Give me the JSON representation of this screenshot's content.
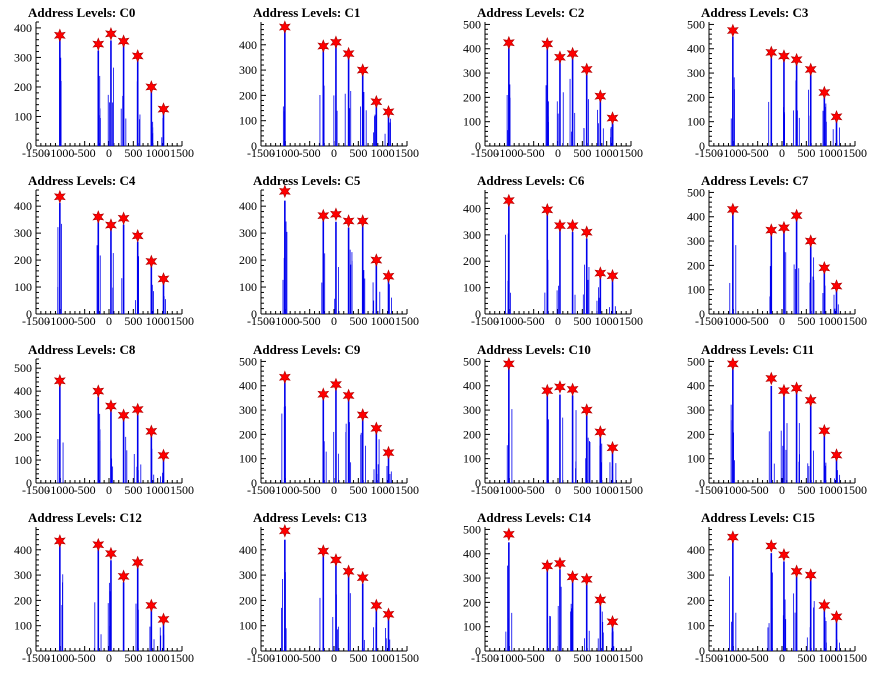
{
  "chart_data": [
    {
      "type": "bar",
      "title": "Address Levels: C0",
      "xlim": [
        -1500,
        1500
      ],
      "ylim": [
        0,
        420
      ],
      "yticks": [
        0,
        100,
        200,
        300,
        400
      ],
      "xtick_labels": [
        "-1500",
        "-1000",
        "-500",
        "0",
        "500",
        "1000",
        "1500"
      ],
      "peaks": [
        [
          -1010,
          375
        ],
        [
          -220,
          345
        ],
        [
          40,
          380
        ],
        [
          300,
          355
        ],
        [
          590,
          305
        ],
        [
          870,
          200
        ],
        [
          1120,
          125
        ]
      ]
    },
    {
      "type": "bar",
      "title": "Address Levels: C1",
      "xlim": [
        -1500,
        1500
      ],
      "ylim": [
        0,
        490
      ],
      "yticks": [
        0,
        100,
        200,
        300,
        400
      ],
      "xtick_labels": [
        "-1500",
        "-1000",
        "-500",
        "0",
        "500",
        "1000",
        "1500"
      ],
      "peaks": [
        [
          -1010,
          470
        ],
        [
          -220,
          395
        ],
        [
          40,
          410
        ],
        [
          300,
          365
        ],
        [
          590,
          300
        ],
        [
          870,
          175
        ],
        [
          1120,
          135
        ]
      ]
    },
    {
      "type": "bar",
      "title": "Address Levels: C2",
      "xlim": [
        -1500,
        1500
      ],
      "ylim": [
        0,
        510
      ],
      "yticks": [
        0,
        100,
        200,
        300,
        400,
        500
      ],
      "xtick_labels": [
        "-1500",
        "-1000",
        "-500",
        "0",
        "500",
        "1000",
        "1500"
      ],
      "peaks": [
        [
          -1010,
          425
        ],
        [
          -220,
          420
        ],
        [
          40,
          365
        ],
        [
          300,
          380
        ],
        [
          590,
          315
        ],
        [
          870,
          205
        ],
        [
          1120,
          115
        ]
      ]
    },
    {
      "type": "bar",
      "title": "Address Levels: C3",
      "xlim": [
        -1500,
        1500
      ],
      "ylim": [
        0,
        510
      ],
      "yticks": [
        0,
        100,
        200,
        300,
        400,
        500
      ],
      "xtick_labels": [
        "-1500",
        "-1000",
        "-500",
        "0",
        "500",
        "1000",
        "1500"
      ],
      "peaks": [
        [
          -1010,
          475
        ],
        [
          -220,
          385
        ],
        [
          40,
          370
        ],
        [
          300,
          355
        ],
        [
          590,
          315
        ],
        [
          870,
          220
        ],
        [
          1120,
          120
        ]
      ]
    },
    {
      "type": "bar",
      "title": "Address Levels: C4",
      "xlim": [
        -1500,
        1500
      ],
      "ylim": [
        0,
        460
      ],
      "yticks": [
        0,
        100,
        200,
        300,
        400
      ],
      "xtick_labels": [
        "-1500",
        "-1000",
        "-500",
        "0",
        "500",
        "1000",
        "1500"
      ],
      "peaks": [
        [
          -1010,
          435
        ],
        [
          -220,
          360
        ],
        [
          40,
          330
        ],
        [
          300,
          355
        ],
        [
          590,
          290
        ],
        [
          870,
          195
        ],
        [
          1120,
          130
        ]
      ]
    },
    {
      "type": "bar",
      "title": "Address Levels: C5",
      "xlim": [
        -1500,
        1500
      ],
      "ylim": [
        0,
        460
      ],
      "yticks": [
        0,
        100,
        200,
        300,
        400
      ],
      "xtick_labels": [
        "-1500",
        "-1000",
        "-500",
        "0",
        "500",
        "1000",
        "1500"
      ],
      "peaks": [
        [
          -1010,
          455
        ],
        [
          -220,
          365
        ],
        [
          40,
          370
        ],
        [
          300,
          345
        ],
        [
          590,
          345
        ],
        [
          870,
          200
        ],
        [
          1120,
          140
        ]
      ]
    },
    {
      "type": "bar",
      "title": "Address Levels: C6",
      "xlim": [
        -1500,
        1500
      ],
      "ylim": [
        0,
        470
      ],
      "yticks": [
        0,
        100,
        200,
        300,
        400
      ],
      "xtick_labels": [
        "-1500",
        "-1000",
        "-500",
        "0",
        "500",
        "1000",
        "1500"
      ],
      "peaks": [
        [
          -1010,
          430
        ],
        [
          -220,
          395
        ],
        [
          40,
          335
        ],
        [
          300,
          335
        ],
        [
          590,
          310
        ],
        [
          870,
          155
        ],
        [
          1120,
          145
        ]
      ]
    },
    {
      "type": "bar",
      "title": "Address Levels: C7",
      "xlim": [
        -1500,
        1500
      ],
      "ylim": [
        0,
        510
      ],
      "yticks": [
        0,
        100,
        200,
        300,
        400,
        500
      ],
      "xtick_labels": [
        "-1500",
        "-1000",
        "-500",
        "0",
        "500",
        "1000",
        "1500"
      ],
      "peaks": [
        [
          -1010,
          430
        ],
        [
          -220,
          345
        ],
        [
          40,
          355
        ],
        [
          300,
          405
        ],
        [
          590,
          300
        ],
        [
          870,
          190
        ],
        [
          1120,
          115
        ]
      ]
    },
    {
      "type": "bar",
      "title": "Address Levels: C8",
      "xlim": [
        -1500,
        1500
      ],
      "ylim": [
        0,
        540
      ],
      "yticks": [
        0,
        100,
        200,
        300,
        400,
        500
      ],
      "xtick_labels": [
        "-1500",
        "-1000",
        "-500",
        "0",
        "500",
        "1000",
        "1500"
      ],
      "peaks": [
        [
          -1010,
          445
        ],
        [
          -220,
          400
        ],
        [
          40,
          335
        ],
        [
          300,
          295
        ],
        [
          590,
          320
        ],
        [
          870,
          225
        ],
        [
          1120,
          120
        ]
      ]
    },
    {
      "type": "bar",
      "title": "Address Levels: C9",
      "xlim": [
        -1500,
        1500
      ],
      "ylim": [
        0,
        510
      ],
      "yticks": [
        0,
        100,
        200,
        300,
        400,
        500
      ],
      "xtick_labels": [
        "-1500",
        "-1000",
        "-500",
        "0",
        "500",
        "1000",
        "1500"
      ],
      "peaks": [
        [
          -1010,
          435
        ],
        [
          -220,
          365
        ],
        [
          40,
          405
        ],
        [
          300,
          360
        ],
        [
          590,
          280
        ],
        [
          870,
          225
        ],
        [
          1120,
          125
        ]
      ]
    },
    {
      "type": "bar",
      "title": "Address Levels: C10",
      "xlim": [
        -1500,
        1500
      ],
      "ylim": [
        0,
        510
      ],
      "yticks": [
        0,
        100,
        200,
        300,
        400,
        500
      ],
      "xtick_labels": [
        "-1500",
        "-1000",
        "-500",
        "0",
        "500",
        "1000",
        "1500"
      ],
      "peaks": [
        [
          -1010,
          490
        ],
        [
          -220,
          380
        ],
        [
          40,
          395
        ],
        [
          300,
          385
        ],
        [
          590,
          300
        ],
        [
          870,
          210
        ],
        [
          1120,
          145
        ]
      ]
    },
    {
      "type": "bar",
      "title": "Address Levels: C11",
      "xlim": [
        -1500,
        1500
      ],
      "ylim": [
        0,
        510
      ],
      "yticks": [
        0,
        100,
        200,
        300,
        400,
        500
      ],
      "xtick_labels": [
        "-1500",
        "-1000",
        "-500",
        "0",
        "500",
        "1000",
        "1500"
      ],
      "peaks": [
        [
          -1010,
          490
        ],
        [
          -220,
          430
        ],
        [
          40,
          380
        ],
        [
          300,
          390
        ],
        [
          590,
          340
        ],
        [
          870,
          215
        ],
        [
          1120,
          115
        ]
      ]
    },
    {
      "type": "bar",
      "title": "Address Levels: C12",
      "xlim": [
        -1500,
        1500
      ],
      "ylim": [
        0,
        490
      ],
      "yticks": [
        0,
        100,
        200,
        300,
        400
      ],
      "xtick_labels": [
        "-1500",
        "-1000",
        "-500",
        "0",
        "500",
        "1000",
        "1500"
      ],
      "peaks": [
        [
          -1010,
          435
        ],
        [
          -220,
          420
        ],
        [
          40,
          385
        ],
        [
          300,
          295
        ],
        [
          590,
          350
        ],
        [
          870,
          180
        ],
        [
          1120,
          125
        ]
      ]
    },
    {
      "type": "bar",
      "title": "Address Levels: C13",
      "xlim": [
        -1500,
        1500
      ],
      "ylim": [
        0,
        490
      ],
      "yticks": [
        0,
        100,
        200,
        300,
        400
      ],
      "xtick_labels": [
        "-1500",
        "-1000",
        "-500",
        "0",
        "500",
        "1000",
        "1500"
      ],
      "peaks": [
        [
          -1010,
          475
        ],
        [
          -220,
          395
        ],
        [
          40,
          360
        ],
        [
          300,
          315
        ],
        [
          590,
          290
        ],
        [
          870,
          180
        ],
        [
          1120,
          145
        ]
      ]
    },
    {
      "type": "bar",
      "title": "Address Levels: C14",
      "xlim": [
        -1500,
        1500
      ],
      "ylim": [
        0,
        510
      ],
      "yticks": [
        0,
        100,
        200,
        300,
        400,
        500
      ],
      "xtick_labels": [
        "-1500",
        "-1000",
        "-500",
        "0",
        "500",
        "1000",
        "1500"
      ],
      "peaks": [
        [
          -1010,
          480
        ],
        [
          -220,
          350
        ],
        [
          40,
          360
        ],
        [
          300,
          305
        ],
        [
          590,
          295
        ],
        [
          870,
          210
        ],
        [
          1120,
          120
        ]
      ]
    },
    {
      "type": "bar",
      "title": "Address Levels: C15",
      "xlim": [
        -1500,
        1500
      ],
      "ylim": [
        0,
        490
      ],
      "yticks": [
        0,
        100,
        200,
        300,
        400
      ],
      "xtick_labels": [
        "-1500",
        "-1000",
        "-500",
        "0",
        "500",
        "1000",
        "1500"
      ],
      "peaks": [
        [
          -1010,
          450
        ],
        [
          -220,
          415
        ],
        [
          40,
          380
        ],
        [
          300,
          315
        ],
        [
          590,
          300
        ],
        [
          870,
          180
        ],
        [
          1120,
          135
        ]
      ]
    }
  ],
  "colors": {
    "bars": "#0000ee",
    "markers": "#ff0000",
    "axes": "#000000",
    "background": "#ffffff"
  },
  "marker_icon": "star-marker-icon"
}
